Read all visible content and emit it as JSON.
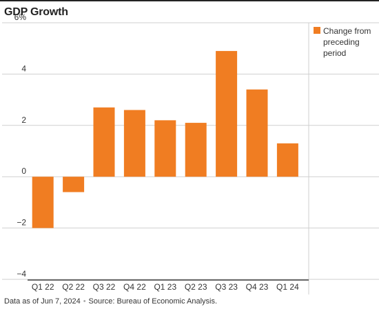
{
  "title": "GDP Growth",
  "footer": {
    "data_as_of": "Data as of Jun 7, 2024",
    "separator": "•",
    "source": "Source: Bureau of Economic Analysis."
  },
  "colors": {
    "bar": "#f07d22",
    "grid": "#cfcfcf",
    "axis_line": "#222222"
  },
  "chart_data": {
    "type": "bar",
    "title": "GDP Growth",
    "categories": [
      "Q1 22",
      "Q2 22",
      "Q3 22",
      "Q4 22",
      "Q1 23",
      "Q2 23",
      "Q3 23",
      "Q4 23",
      "Q1 24"
    ],
    "series": [
      {
        "name": "Change from preceding period",
        "legend_lines": [
          "Change from",
          "preceding",
          "period"
        ],
        "values": [
          -2.0,
          -0.6,
          2.7,
          2.6,
          2.2,
          2.1,
          4.9,
          3.4,
          1.3
        ]
      }
    ],
    "yticks": [
      -4,
      -2,
      0,
      2,
      4,
      6
    ],
    "ytick_labels": [
      "−4",
      "−2",
      "0",
      "2",
      "4",
      "6%"
    ],
    "ylim": [
      -4,
      6
    ],
    "xlabel": "",
    "ylabel": "",
    "grid": true,
    "legend_position": "right"
  }
}
